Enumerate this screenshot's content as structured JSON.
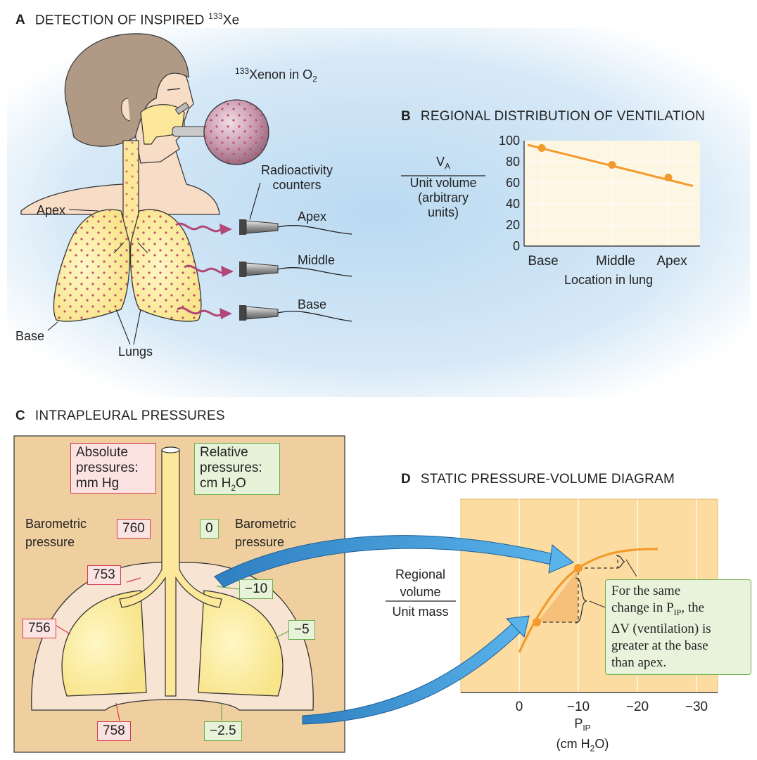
{
  "colors": {
    "orange": "#f39a2c",
    "blue_arrow": "#4aa3df",
    "red_box": "#d33a4a",
    "green_box": "#6ab04c",
    "tan_panel": "#efcf9f",
    "lung_yellow": "#fce79a",
    "xenon_dot": "#c0506a",
    "chart_bg": "#fcdca0"
  },
  "panel_a": {
    "letter": "A",
    "title": "DETECTION OF INSPIRED",
    "title_sup": "133",
    "title_tail": "Xe",
    "xenon_sup": "133",
    "xenon_text": "Xenon in O",
    "xenon_sub": "2",
    "counters_label_1": "Radioactivity",
    "counters_label_2": "counters",
    "apex_left": "Apex",
    "base_left": "Base",
    "lungs": "Lungs",
    "counter_apex": "Apex",
    "counter_middle": "Middle",
    "counter_base": "Base"
  },
  "panel_b": {
    "letter": "B",
    "title": "REGIONAL DISTRIBUTION OF VENTILATION",
    "ylabel_top": "V",
    "ylabel_top_sub": "A",
    "ylabel_1": "Unit volume",
    "ylabel_2": "(arbitrary",
    "ylabel_3": "units)",
    "xlabel": "Location in lung"
  },
  "panel_c": {
    "letter": "C",
    "title": "INTRAPLEURAL PRESSURES",
    "abs_box_1": "Absolute",
    "abs_box_2": "pressures:",
    "abs_box_3": "mm Hg",
    "rel_box_1": "Relative",
    "rel_box_2": "pressures:",
    "rel_box_3a": "cm H",
    "rel_box_3sub": "2",
    "rel_box_3b": "O",
    "baro_left_1": "Barometric",
    "baro_left_2": "pressure",
    "baro_right_1": "Barometric",
    "baro_right_2": "pressure",
    "abs_values": [
      "760",
      "753",
      "756",
      "758"
    ],
    "rel_values": [
      "0",
      "−10",
      "−5",
      "−2.5"
    ]
  },
  "panel_d": {
    "letter": "D",
    "title": "STATIC PRESSURE-VOLUME DIAGRAM",
    "ylabel_1": "Regional",
    "ylabel_2": "volume",
    "ylabel_3": "Unit mass",
    "xlabel_main": "P",
    "xlabel_sub": "IP",
    "xlabel_units_a": "(cm H",
    "xlabel_units_sub": "2",
    "xlabel_units_b": "O)",
    "note_1": "For the same",
    "note_2a": "change in P",
    "note_2sub": "IP",
    "note_2b": ", the",
    "note_3": "ΔV (ventilation) is",
    "note_4": "greater at the base",
    "note_5": "than apex."
  },
  "chart_data": [
    {
      "type": "line",
      "title": "REGIONAL DISTRIBUTION OF VENTILATION",
      "categories": [
        "Base",
        "Middle",
        "Apex"
      ],
      "series": [
        {
          "name": "Ventilation",
          "values": [
            93,
            77,
            65
          ]
        }
      ],
      "xlabel": "Location in lung",
      "ylabel": "V̇A / Unit volume (arbitrary units)",
      "ylim": [
        0,
        100
      ],
      "yticks": [
        0,
        20,
        40,
        60,
        80,
        100
      ],
      "grid": true
    },
    {
      "type": "line",
      "title": "STATIC PRESSURE-VOLUME DIAGRAM",
      "xlabel": "PIP (cm H2O)",
      "ylabel": "Regional volume / Unit mass",
      "xticks": [
        0,
        -10,
        -20,
        -30
      ],
      "xtick_labels": [
        "0",
        "−10",
        "−20",
        "−30"
      ],
      "highlighted_points": [
        {
          "name": "base",
          "x": -3,
          "y": 0.42
        },
        {
          "name": "apex",
          "x": -10,
          "y": 0.75
        }
      ],
      "grid": true
    }
  ]
}
